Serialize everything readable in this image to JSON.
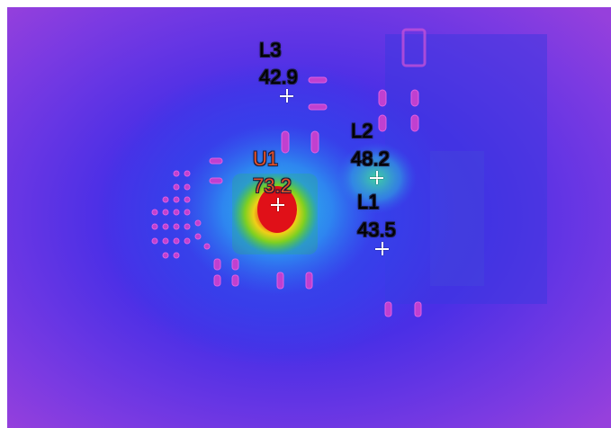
{
  "spots": [
    {
      "name": "L3",
      "value": "42.9",
      "color": "#ffffff"
    },
    {
      "name": "U1",
      "value": "73.2",
      "color": "#e05028"
    },
    {
      "name": "L2",
      "value": "48.2",
      "color": "#ffffff"
    },
    {
      "name": "L1",
      "value": "43.5",
      "color": "#ffffff"
    }
  ],
  "palette": {
    "background": "#8a3ce0",
    "cool": "#3a3ce8",
    "mid": "#28b4e8",
    "warm": "#e8e020",
    "hot": "#e82818"
  }
}
